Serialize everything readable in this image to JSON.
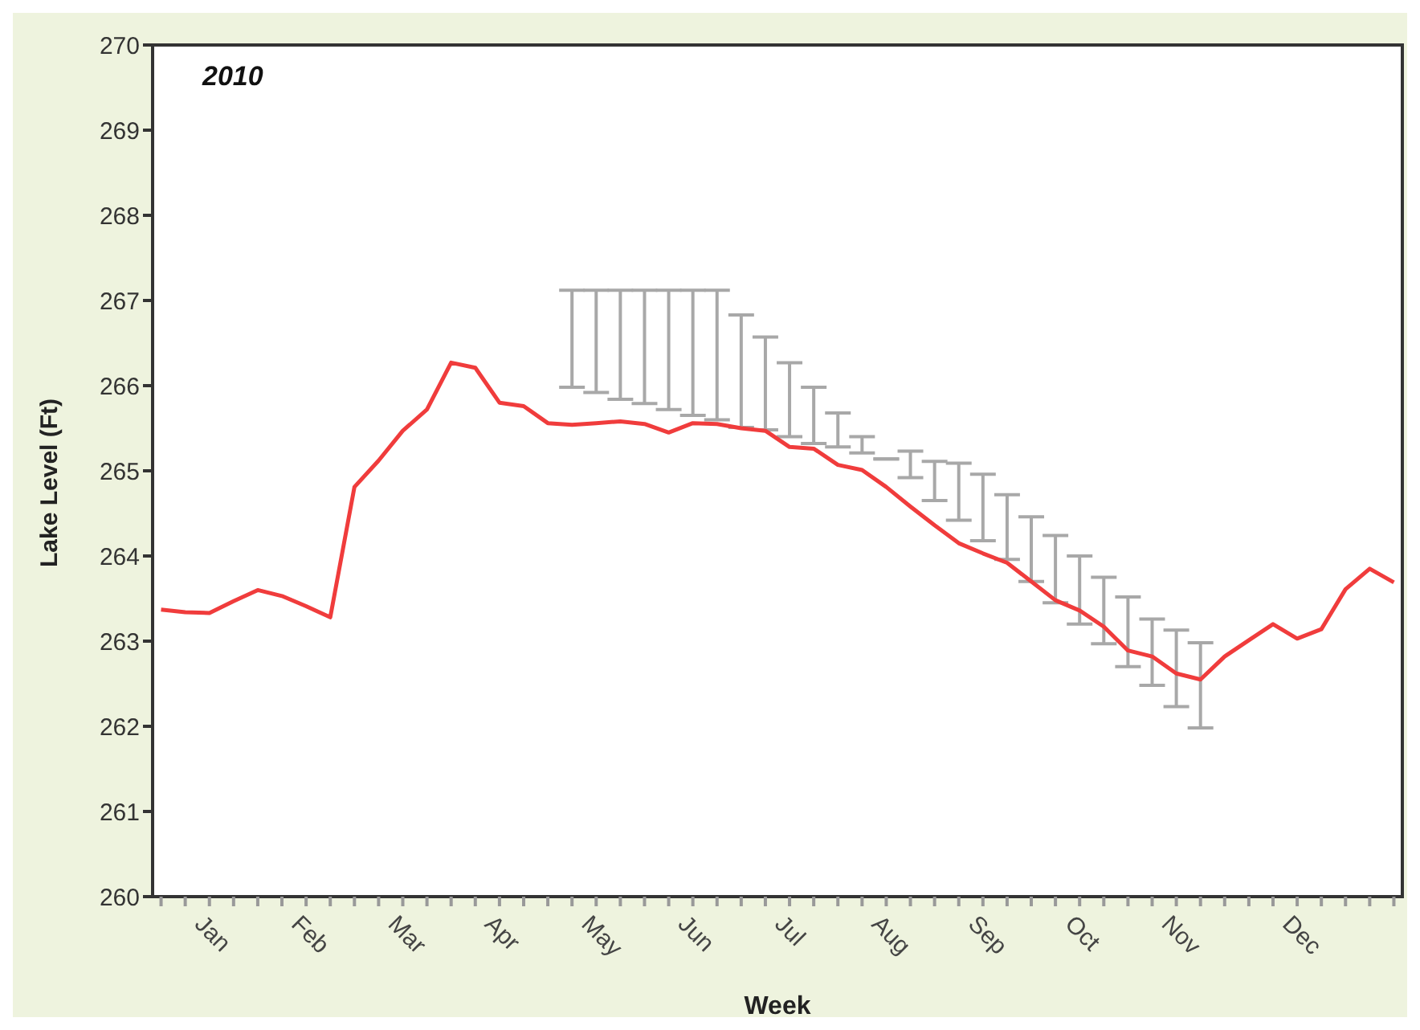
{
  "chart_data": {
    "type": "line",
    "title": "2010",
    "xlabel": "Week",
    "ylabel": "Lake Level (Ft)",
    "categories": [
      null,
      null,
      "Jan",
      null,
      null,
      null,
      "Feb",
      null,
      null,
      null,
      "Mar",
      null,
      null,
      null,
      "Apr",
      null,
      null,
      null,
      "May",
      null,
      null,
      null,
      "Jun",
      null,
      null,
      null,
      "Jul",
      null,
      null,
      null,
      "Aug",
      null,
      null,
      null,
      "Sep",
      null,
      null,
      null,
      "Oct",
      null,
      null,
      null,
      "Nov",
      null,
      null,
      null,
      null,
      "Dec",
      null,
      null,
      null,
      null
    ],
    "series": [
      {
        "color": "#f03c3c",
        "values": [
          263.37,
          263.34,
          263.33,
          263.47,
          263.6,
          263.53,
          263.41,
          263.28,
          264.81,
          265.12,
          265.47,
          265.72,
          266.27,
          266.21,
          265.8,
          265.76,
          265.56,
          265.54,
          265.56,
          265.58,
          265.55,
          265.45,
          265.56,
          265.55,
          265.5,
          265.47,
          265.28,
          265.26,
          265.07,
          265.01,
          264.81,
          264.58,
          264.36,
          264.15,
          264.03,
          263.92,
          263.7,
          263.48,
          263.36,
          263.17,
          262.89,
          262.82,
          262.62,
          262.55,
          262.82,
          263.01,
          263.2,
          263.03,
          263.14,
          263.61,
          263.85,
          263.69
        ],
        "errors": [
          null,
          null,
          null,
          null,
          null,
          null,
          null,
          null,
          null,
          null,
          null,
          null,
          null,
          null,
          null,
          null,
          null,
          [
            265.98,
            267.12
          ],
          [
            265.92,
            267.12
          ],
          [
            265.84,
            267.12
          ],
          [
            265.79,
            267.12
          ],
          [
            265.72,
            267.12
          ],
          [
            265.65,
            267.12
          ],
          [
            265.6,
            267.12
          ],
          [
            265.51,
            266.83
          ],
          [
            265.48,
            266.57
          ],
          [
            265.4,
            266.27
          ],
          [
            265.32,
            265.98
          ],
          [
            265.28,
            265.68
          ],
          [
            265.21,
            265.4
          ],
          [
            265.14,
            265.14
          ],
          [
            264.92,
            265.23
          ],
          [
            264.65,
            265.11
          ],
          [
            264.42,
            265.09
          ],
          [
            264.18,
            264.96
          ],
          [
            263.96,
            264.72
          ],
          [
            263.7,
            264.46
          ],
          [
            263.45,
            264.24
          ],
          [
            263.2,
            264.0
          ],
          [
            262.97,
            263.75
          ],
          [
            262.7,
            263.52
          ],
          [
            262.48,
            263.26
          ],
          [
            262.23,
            263.13
          ],
          [
            261.98,
            262.98
          ],
          null,
          null,
          null,
          null,
          null,
          null,
          null,
          null
        ]
      }
    ],
    "ylim": [
      260,
      270
    ],
    "yticks": [
      260,
      261,
      262,
      263,
      264,
      265,
      266,
      267,
      268,
      269,
      270
    ],
    "marker": "none",
    "line_style": "solid"
  }
}
